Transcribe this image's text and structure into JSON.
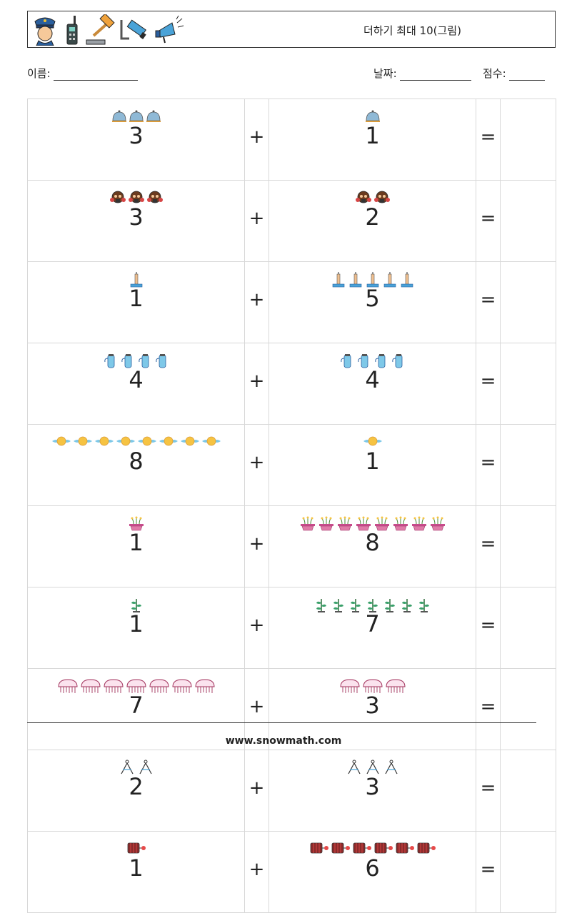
{
  "header": {
    "title": "더하기 최대 10(그림)",
    "icons": [
      "police-officer-icon",
      "walkie-talkie-icon",
      "gavel-icon",
      "security-camera-icon",
      "megaphone-icon"
    ]
  },
  "meta": {
    "name_label": "이름:",
    "date_label": "날짜:",
    "score_label": "점수:"
  },
  "operators": {
    "plus": "+",
    "equals": "="
  },
  "problems": [
    {
      "a": 3,
      "b": 1,
      "icon": "cloche-icon"
    },
    {
      "a": 3,
      "b": 2,
      "icon": "gas-mask-icon"
    },
    {
      "a": 1,
      "b": 5,
      "icon": "candle-icon"
    },
    {
      "a": 4,
      "b": 4,
      "icon": "flask-icon"
    },
    {
      "a": 8,
      "b": 1,
      "icon": "sun-wing-icon"
    },
    {
      "a": 1,
      "b": 8,
      "icon": "sprout-pot-icon"
    },
    {
      "a": 1,
      "b": 7,
      "icon": "plant-icon"
    },
    {
      "a": 7,
      "b": 3,
      "icon": "jellyfish-icon"
    },
    {
      "a": 2,
      "b": 3,
      "icon": "compass-icon"
    },
    {
      "a": 1,
      "b": 6,
      "icon": "fire-hose-icon"
    }
  ],
  "footer": {
    "site": "www.snowmath.com"
  }
}
